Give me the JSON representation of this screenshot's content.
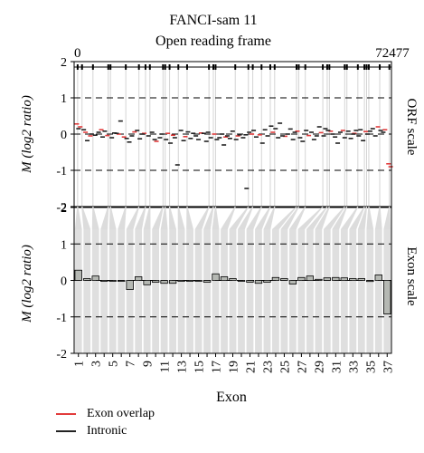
{
  "chart_data": [
    {
      "type": "scatter",
      "title": "FANCI-sam 11",
      "subtitle": "Open reading frame",
      "ylabel": "M (log2 ratio)",
      "right_label": "ORF scale",
      "x_range_labels": [
        "0",
        "72477"
      ],
      "xlim": [
        0,
        72477
      ],
      "ylim": [
        -2,
        2
      ],
      "y_ticks": [
        -2,
        -1,
        0,
        1,
        2
      ],
      "reference_lines": [
        1,
        0,
        -1
      ],
      "exon_positions": [
        800,
        1800,
        4300,
        7800,
        8300,
        11800,
        14800,
        16300,
        17300,
        20300,
        20800,
        21800,
        23800,
        25800,
        30800,
        31800,
        32300,
        36800,
        39800,
        40800,
        42800,
        44800,
        45800,
        50800,
        51300,
        52800,
        56800,
        57800,
        58300,
        61800,
        62300,
        64800,
        66300,
        66800,
        67300,
        69800,
        72000
      ],
      "series": [
        {
          "name": "Exon overlap",
          "color": "#e23c3c",
          "x": [
            600,
            1400,
            2600,
            3700,
            6200,
            7600,
            10200,
            11400,
            13800,
            16000,
            18800,
            21400,
            22600,
            25400,
            29000,
            32000,
            34600,
            37400,
            40600,
            42400,
            45400,
            48200,
            51000,
            53600,
            56400,
            58600,
            61400,
            64000,
            66600,
            69400,
            71000,
            71800,
            72300
          ],
          "y": [
            0.28,
            0.2,
            0.05,
            -0.05,
            0.12,
            -0.04,
            0.0,
            -0.08,
            0.06,
            0.02,
            -0.2,
            0.02,
            -0.03,
            -0.07,
            0.03,
            0.0,
            -0.08,
            -0.05,
            0.0,
            -0.02,
            0.05,
            -0.06,
            0.08,
            -0.04,
            0.04,
            0.08,
            0.1,
            0.02,
            0.07,
            0.2,
            0.12,
            -0.82,
            -0.9
          ]
        },
        {
          "name": "Intronic",
          "color": "#222222",
          "x": [
            1000,
            2200,
            3000,
            4000,
            4800,
            5600,
            6500,
            7000,
            8600,
            9200,
            9700,
            10600,
            12000,
            12600,
            13200,
            14400,
            15000,
            15600,
            17000,
            17800,
            18400,
            19600,
            20000,
            21000,
            22000,
            23000,
            23600,
            24400,
            25000,
            26000,
            26600,
            27200,
            27800,
            28400,
            29600,
            30200,
            30600,
            31200,
            32600,
            33200,
            33800,
            34200,
            35000,
            35600,
            36200,
            37000,
            37800,
            38600,
            39200,
            39400,
            40000,
            41000,
            41600,
            43000,
            43600,
            44200,
            45000,
            46000,
            46600,
            47000,
            47600,
            48800,
            49400,
            50000,
            50400,
            51600,
            52200,
            53000,
            54200,
            54800,
            55400,
            56000,
            57000,
            57400,
            58000,
            59000,
            59600,
            60200,
            60800,
            61800,
            62600,
            63200,
            63800,
            64400,
            65000,
            65400,
            66000,
            67000,
            67600,
            68200,
            68800,
            70000,
            70600
          ],
          "y": [
            0.15,
            0.12,
            -0.18,
            0.0,
            -0.03,
            0.05,
            -0.08,
            0.08,
            -0.1,
            0.03,
            0.02,
            0.36,
            -0.12,
            -0.22,
            -0.05,
            0.1,
            -0.13,
            0.0,
            -0.05,
            0.05,
            -0.15,
            -0.1,
            0.0,
            -0.15,
            -0.25,
            -0.1,
            -0.85,
            0.1,
            -0.18,
            0.06,
            -0.12,
            0.02,
            -0.05,
            -0.15,
            0.02,
            -0.2,
            0.05,
            -0.1,
            -0.15,
            -0.1,
            0.0,
            -0.3,
            -0.05,
            -0.12,
            0.08,
            -0.15,
            -0.02,
            -0.1,
            -0.02,
            -1.5,
            0.05,
            0.1,
            -0.08,
            -0.25,
            0.12,
            -0.05,
            0.22,
            0.15,
            -0.1,
            0.3,
            -0.05,
            0.0,
            0.14,
            -0.15,
            0.05,
            -0.1,
            -0.2,
            0.1,
            0.05,
            -0.15,
            -0.05,
            0.2,
            -0.05,
            0.15,
            0.1,
            0.0,
            -0.08,
            -0.25,
            0.05,
            -0.1,
            0.08,
            -0.12,
            0.0,
            0.1,
            -0.05,
            0.12,
            -0.18,
            0.0,
            0.08,
            0.15,
            -0.05,
            0.1,
            0.05
          ]
        }
      ]
    },
    {
      "type": "bar",
      "ylabel": "M (log2 ratio)",
      "right_label": "Exon scale",
      "xlabel": "Exon",
      "ylim": [
        -2,
        2
      ],
      "y_ticks": [
        -2,
        -1,
        0,
        1,
        2
      ],
      "reference_lines": [
        1,
        0,
        -1
      ],
      "x_tick_labels": [
        "1",
        "3",
        "5",
        "7",
        "9",
        "11",
        "13",
        "15",
        "17",
        "19",
        "21",
        "23",
        "25",
        "27",
        "29",
        "31",
        "33",
        "35",
        "37"
      ],
      "categories": [
        "1",
        "2",
        "3",
        "4",
        "5",
        "6",
        "7",
        "8",
        "9",
        "10",
        "11",
        "12",
        "13",
        "14",
        "15",
        "16",
        "17",
        "18",
        "19",
        "20",
        "21",
        "22",
        "23",
        "24",
        "25",
        "26",
        "27",
        "28",
        "29",
        "30",
        "31",
        "32",
        "33",
        "34",
        "35",
        "36",
        "37"
      ],
      "values": [
        0.28,
        0.05,
        0.12,
        0.0,
        0.0,
        0.0,
        -0.25,
        0.1,
        -0.12,
        -0.05,
        -0.08,
        -0.08,
        0.0,
        -0.02,
        0.0,
        -0.05,
        0.18,
        0.1,
        0.05,
        0.0,
        -0.05,
        -0.08,
        -0.05,
        0.08,
        0.05,
        -0.1,
        0.08,
        0.12,
        0.03,
        0.07,
        0.08,
        0.07,
        0.05,
        0.05,
        -0.03,
        0.15,
        -0.92
      ],
      "bar_color": "#b5b8b3"
    }
  ],
  "legend": [
    {
      "label": "Exon overlap",
      "color": "#e23c3c"
    },
    {
      "label": "Intronic",
      "color": "#222222"
    }
  ]
}
